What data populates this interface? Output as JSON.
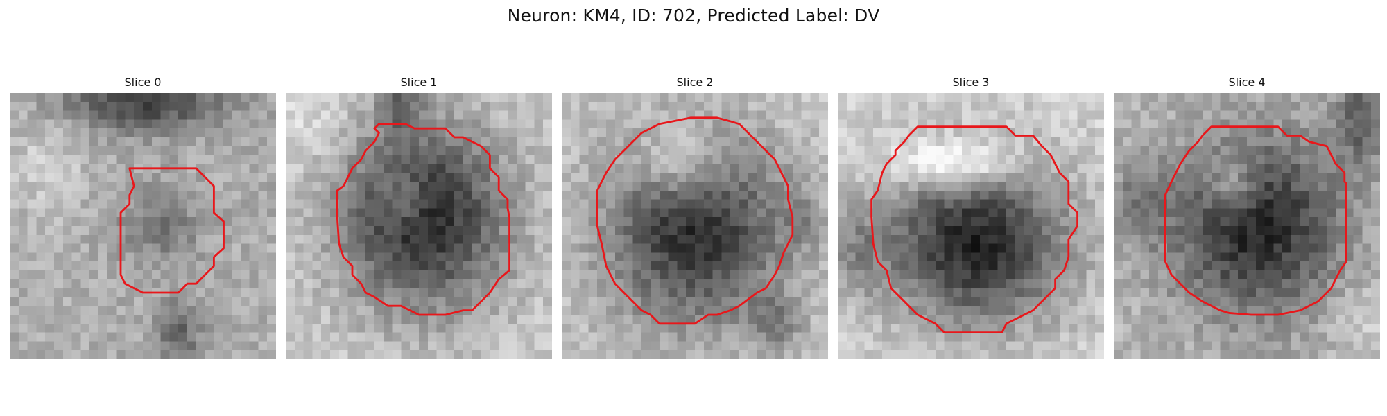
{
  "figure": {
    "title": "Neuron: KM4, ID: 702, Predicted Label: DV",
    "contour_color": "#e8171b",
    "panels": [
      {
        "title": "Slice 0",
        "seed": 11,
        "field": "s0"
      },
      {
        "title": "Slice 1",
        "seed": 23,
        "field": "s1"
      },
      {
        "title": "Slice 2",
        "seed": 37,
        "field": "s2"
      },
      {
        "title": "Slice 3",
        "seed": 51,
        "field": "s3"
      },
      {
        "title": "Slice 4",
        "seed": 67,
        "field": "s4"
      }
    ]
  }
}
